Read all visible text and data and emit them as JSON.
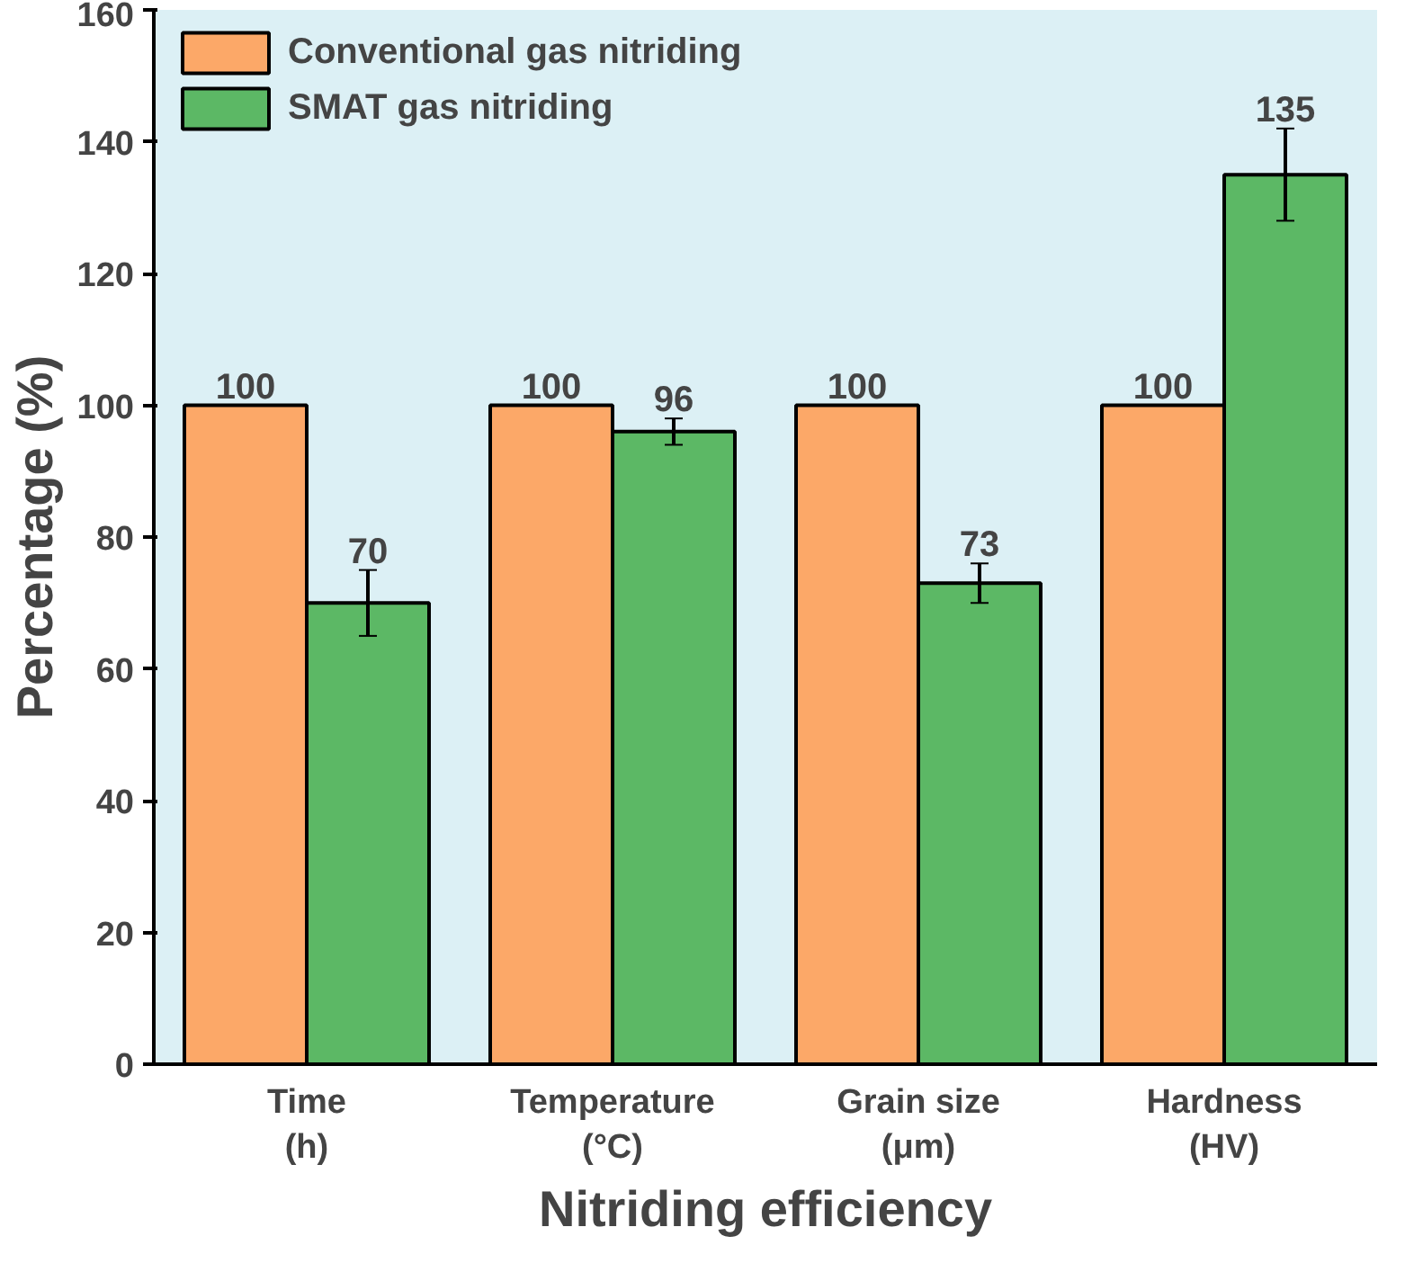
{
  "chart_data": {
    "type": "bar",
    "xlabel": "Nitriding efficiency",
    "ylabel": "Percentage (%)",
    "categories": [
      "Time\n(h)",
      "Temperature\n(°C)",
      "Grain size\n(μm)",
      "Hardness\n(HV)"
    ],
    "series": [
      {
        "name": "Conventional gas nitriding",
        "color": "#fca868",
        "values": [
          100,
          100,
          100,
          100
        ]
      },
      {
        "name": "SMAT gas nitriding",
        "color": "#5cb865",
        "values": [
          70,
          96,
          73,
          135
        ],
        "errors": [
          5,
          2,
          3,
          7
        ]
      }
    ],
    "ylim": [
      0,
      160
    ],
    "yticks": [
      0,
      20,
      40,
      60,
      80,
      100,
      120,
      140,
      160
    ],
    "data_labels": true,
    "legend": "top left",
    "grid": false
  }
}
